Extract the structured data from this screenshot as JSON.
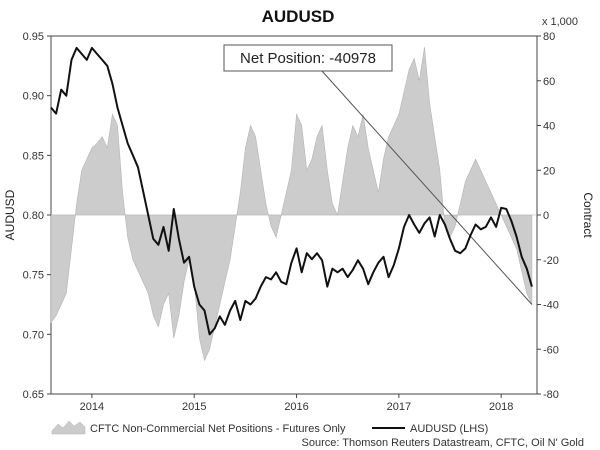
{
  "chart_data": {
    "type": "line",
    "title": "AUDUSD",
    "ylabel": "AUDUSD",
    "y2label": "Contract",
    "y2_multiplier": "x 1,000",
    "ylim": [
      0.65,
      0.95
    ],
    "y2lim": [
      -80,
      80
    ],
    "xlim": [
      2013.6,
      2018.35
    ],
    "y_ticks": [
      "0.95",
      "0.90",
      "0.85",
      "0.80",
      "0.75",
      "0.70",
      "0.65"
    ],
    "y2_ticks": [
      "80",
      "60",
      "40",
      "20",
      "0",
      "-20",
      "-40",
      "-60",
      "-80"
    ],
    "x_ticks": [
      {
        "label": "2014",
        "value": 2014.0
      },
      {
        "label": "2015",
        "value": 2015.0
      },
      {
        "label": "2016",
        "value": 2016.0
      },
      {
        "label": "2017",
        "value": 2017.0
      },
      {
        "label": "2018",
        "value": 2018.0
      }
    ],
    "annotation": "Net Position: -40978",
    "legend": {
      "position": "bottom",
      "area_label": "CFTC Non-Commercial Net Positions - Futures Only",
      "line_label": "AUDUSD (LHS)"
    },
    "source": "Source: Thomson Reuters Datastream, CFTC, Oil N' Gold",
    "grid": false,
    "colors": {
      "area": "#cccccc",
      "area_edge": "#b5b5b5",
      "line": "#111111",
      "trend": "#555555"
    },
    "series": [
      {
        "name": "AUDUSD (LHS)",
        "axis": "left",
        "x": [
          2013.6,
          2013.65,
          2013.7,
          2013.75,
          2013.8,
          2013.85,
          2013.9,
          2013.95,
          2014.0,
          2014.05,
          2014.1,
          2014.15,
          2014.2,
          2014.25,
          2014.3,
          2014.35,
          2014.4,
          2014.45,
          2014.5,
          2014.55,
          2014.6,
          2014.65,
          2014.7,
          2014.75,
          2014.8,
          2014.85,
          2014.9,
          2014.95,
          2015.0,
          2015.05,
          2015.1,
          2015.15,
          2015.2,
          2015.25,
          2015.3,
          2015.35,
          2015.4,
          2015.45,
          2015.5,
          2015.55,
          2015.6,
          2015.65,
          2015.7,
          2015.75,
          2015.8,
          2015.85,
          2015.9,
          2015.95,
          2016.0,
          2016.05,
          2016.1,
          2016.15,
          2016.2,
          2016.25,
          2016.3,
          2016.35,
          2016.4,
          2016.45,
          2016.5,
          2016.55,
          2016.6,
          2016.65,
          2016.7,
          2016.75,
          2016.8,
          2016.85,
          2016.9,
          2016.95,
          2017.0,
          2017.05,
          2017.1,
          2017.15,
          2017.2,
          2017.25,
          2017.3,
          2017.35,
          2017.4,
          2017.45,
          2017.5,
          2017.55,
          2017.6,
          2017.65,
          2017.7,
          2017.75,
          2017.8,
          2017.85,
          2017.9,
          2017.95,
          2018.0,
          2018.05,
          2018.1,
          2018.15,
          2018.2,
          2018.25,
          2018.3
        ],
        "values": [
          0.89,
          0.885,
          0.905,
          0.9,
          0.93,
          0.94,
          0.935,
          0.93,
          0.94,
          0.935,
          0.93,
          0.925,
          0.91,
          0.89,
          0.875,
          0.86,
          0.85,
          0.84,
          0.82,
          0.8,
          0.78,
          0.775,
          0.79,
          0.77,
          0.805,
          0.78,
          0.76,
          0.765,
          0.74,
          0.725,
          0.72,
          0.7,
          0.705,
          0.715,
          0.708,
          0.72,
          0.728,
          0.712,
          0.728,
          0.725,
          0.73,
          0.74,
          0.748,
          0.746,
          0.752,
          0.744,
          0.742,
          0.76,
          0.772,
          0.752,
          0.768,
          0.763,
          0.768,
          0.762,
          0.74,
          0.755,
          0.752,
          0.755,
          0.748,
          0.754,
          0.762,
          0.755,
          0.742,
          0.752,
          0.76,
          0.765,
          0.748,
          0.758,
          0.772,
          0.79,
          0.8,
          0.792,
          0.785,
          0.793,
          0.798,
          0.782,
          0.8,
          0.792,
          0.78,
          0.77,
          0.768,
          0.772,
          0.783,
          0.792,
          0.788,
          0.79,
          0.798,
          0.79,
          0.806,
          0.805,
          0.795,
          0.782,
          0.765,
          0.755,
          0.74
        ]
      },
      {
        "name": "CFTC Non-Commercial Net Positions - Futures Only",
        "axis": "right",
        "type": "area",
        "baseline": 0,
        "x": [
          2013.6,
          2013.65,
          2013.7,
          2013.75,
          2013.8,
          2013.85,
          2013.9,
          2013.95,
          2014.0,
          2014.05,
          2014.1,
          2014.15,
          2014.2,
          2014.25,
          2014.3,
          2014.35,
          2014.4,
          2014.45,
          2014.5,
          2014.55,
          2014.6,
          2014.65,
          2014.7,
          2014.75,
          2014.8,
          2014.85,
          2014.9,
          2014.95,
          2015.0,
          2015.05,
          2015.1,
          2015.15,
          2015.2,
          2015.25,
          2015.3,
          2015.35,
          2015.4,
          2015.45,
          2015.5,
          2015.55,
          2015.6,
          2015.65,
          2015.7,
          2015.75,
          2015.8,
          2015.85,
          2015.9,
          2015.95,
          2016.0,
          2016.05,
          2016.1,
          2016.15,
          2016.2,
          2016.25,
          2016.3,
          2016.35,
          2016.4,
          2016.45,
          2016.5,
          2016.55,
          2016.6,
          2016.65,
          2016.7,
          2016.75,
          2016.8,
          2016.85,
          2016.9,
          2016.95,
          2017.0,
          2017.05,
          2017.1,
          2017.15,
          2017.2,
          2017.25,
          2017.3,
          2017.35,
          2017.4,
          2017.45,
          2017.5,
          2017.55,
          2017.6,
          2017.65,
          2017.7,
          2017.75,
          2017.8,
          2017.85,
          2017.9,
          2017.95,
          2018.0,
          2018.05,
          2018.1,
          2018.15,
          2018.2,
          2018.25,
          2018.3
        ],
        "values": [
          -48,
          -45,
          -40,
          -35,
          -15,
          5,
          20,
          25,
          30,
          32,
          35,
          30,
          45,
          40,
          10,
          -10,
          -20,
          -25,
          -30,
          -35,
          -45,
          -50,
          -40,
          -35,
          -55,
          -45,
          -30,
          -20,
          -30,
          -55,
          -65,
          -60,
          -50,
          -40,
          -30,
          -20,
          -5,
          10,
          30,
          40,
          35,
          20,
          5,
          -5,
          -10,
          0,
          10,
          20,
          45,
          40,
          20,
          25,
          35,
          40,
          20,
          5,
          0,
          15,
          30,
          40,
          35,
          45,
          30,
          20,
          10,
          25,
          35,
          40,
          45,
          55,
          65,
          70,
          60,
          75,
          50,
          35,
          20,
          -5,
          -10,
          -5,
          5,
          15,
          20,
          25,
          20,
          15,
          10,
          5,
          0,
          -5,
          -10,
          -15,
          -25,
          -35,
          -40
        ]
      }
    ]
  }
}
